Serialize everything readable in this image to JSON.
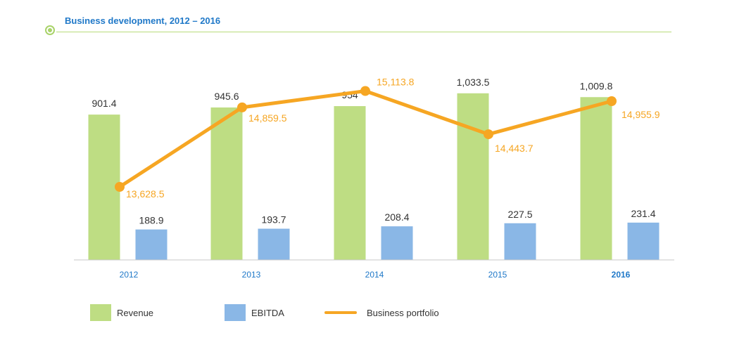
{
  "title": "Business development, 2012 – 2016",
  "colors": {
    "revenue": "#bedd83",
    "ebitda": "#8ab7e6",
    "portfolio": "#f6a623",
    "axis_label": "#1f78c8",
    "value_label": "#333333",
    "title": "#1f78c8",
    "accent_line": "#b8dc7a"
  },
  "legend": {
    "revenue": "Revenue",
    "ebitda": "EBITDA",
    "portfolio": "Business portfolio"
  },
  "chart_data": {
    "type": "bar",
    "categories": [
      "2012",
      "2013",
      "2014",
      "2015",
      "2016"
    ],
    "highlighted_category": "2016",
    "series": [
      {
        "name": "Revenue",
        "type": "bar",
        "values": [
          901.4,
          945.6,
          954,
          1033.5,
          1009.8
        ],
        "labels": [
          "901.4",
          "945.6",
          "954",
          "1,033.5",
          "1,009.8"
        ]
      },
      {
        "name": "EBITDA",
        "type": "bar",
        "values": [
          188.9,
          193.7,
          208.4,
          227.5,
          231.4
        ],
        "labels": [
          "188.9",
          "193.7",
          "208.4",
          "227.5",
          "231.4"
        ]
      },
      {
        "name": "Business portfolio",
        "type": "line",
        "values": [
          13628.5,
          14859.5,
          15113.8,
          14443.7,
          14955.9
        ],
        "labels": [
          "13,628.5",
          "14,859.5",
          "15,113.8",
          "14,443.7",
          "14,955.9"
        ]
      }
    ],
    "bar_axis_range": [
      0,
      1100
    ],
    "line_axis_range": [
      12000,
      15500
    ],
    "grid": false,
    "legend_position": "bottom"
  }
}
